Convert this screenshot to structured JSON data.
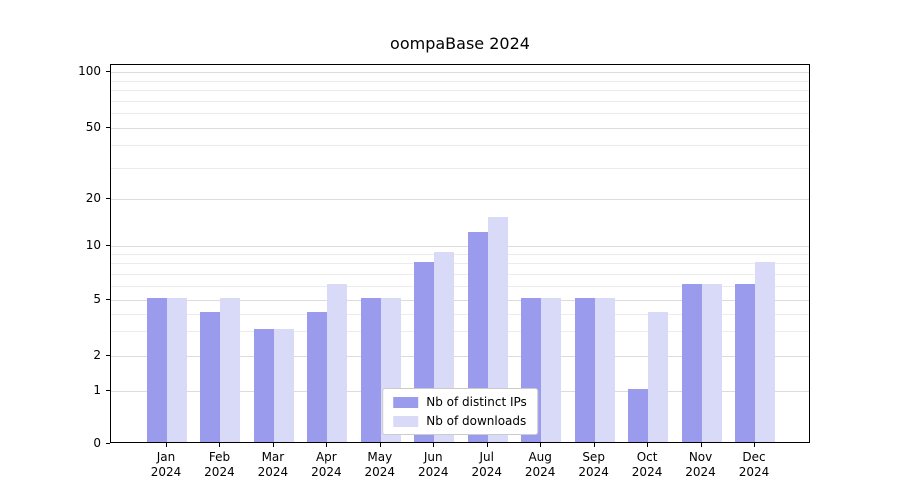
{
  "title": "oompaBase 2024",
  "colors": {
    "background": "#ffffff",
    "axis": "#000000",
    "grid_major": "#dcdcdc",
    "grid_minor": "#ececec",
    "legend_border": "#cccccc"
  },
  "chart_data": {
    "type": "bar",
    "title": "oompaBase 2024",
    "yscale": "symlog",
    "grid": "horizontal",
    "legend_position": "lower center",
    "ylim": [
      0,
      110
    ],
    "y_ticks": [
      0,
      1,
      2,
      5,
      10,
      20,
      50,
      100
    ],
    "minor_gridlines": [
      3,
      4,
      6,
      7,
      8,
      9,
      30,
      40,
      60,
      70,
      80,
      90
    ],
    "categories": [
      {
        "month": "Jan",
        "year": "2024"
      },
      {
        "month": "Feb",
        "year": "2024"
      },
      {
        "month": "Mar",
        "year": "2024"
      },
      {
        "month": "Apr",
        "year": "2024"
      },
      {
        "month": "May",
        "year": "2024"
      },
      {
        "month": "Jun",
        "year": "2024"
      },
      {
        "month": "Jul",
        "year": "2024"
      },
      {
        "month": "Aug",
        "year": "2024"
      },
      {
        "month": "Sep",
        "year": "2024"
      },
      {
        "month": "Oct",
        "year": "2024"
      },
      {
        "month": "Nov",
        "year": "2024"
      },
      {
        "month": "Dec",
        "year": "2024"
      }
    ],
    "series": [
      {
        "name": "Nb of distinct IPs",
        "color": "#9b9bee",
        "values": [
          5,
          4,
          3,
          4,
          5,
          8,
          12,
          5,
          5,
          1,
          6,
          6
        ]
      },
      {
        "name": "Nb of downloads",
        "color": "#d9d9f8",
        "values": [
          5,
          5,
          3,
          6,
          5,
          9,
          15,
          5,
          5,
          4,
          6,
          8
        ]
      }
    ]
  }
}
